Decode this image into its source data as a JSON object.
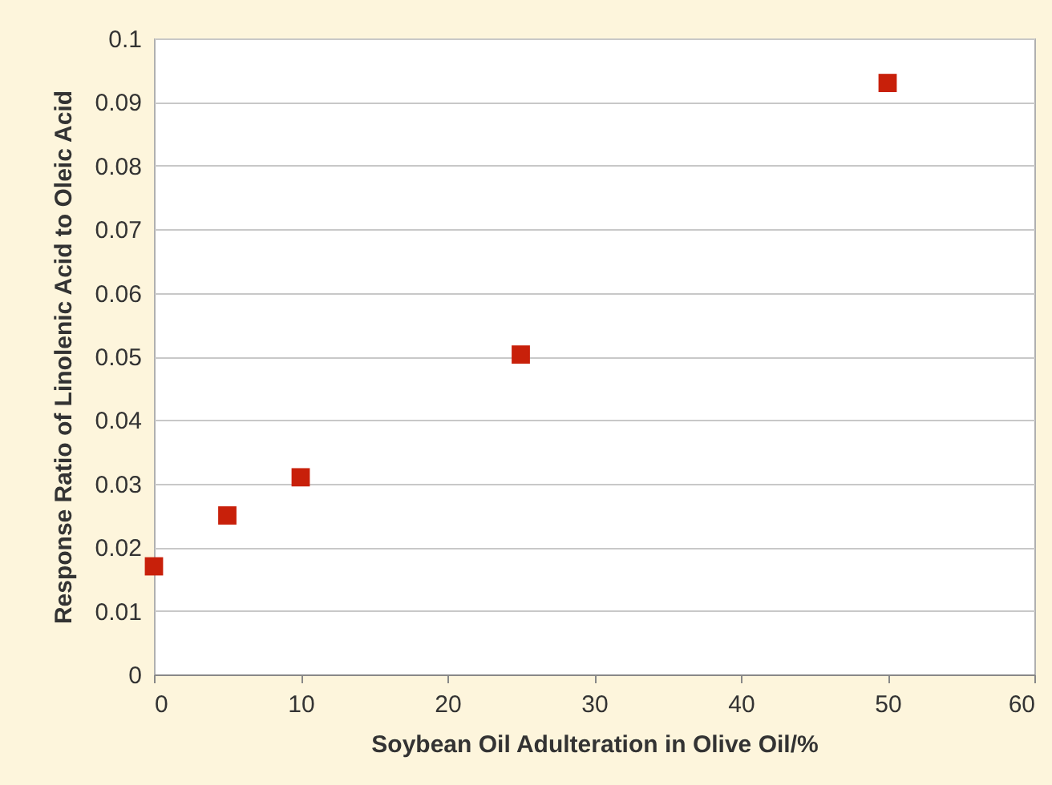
{
  "chart_data": {
    "type": "scatter",
    "xlabel": "Soybean Oil  Adulteration in Olive Oil/%",
    "ylabel": "Response Ratio of Linolenic Acid to Oleic Acid",
    "x": [
      0,
      5,
      10,
      25,
      50
    ],
    "series": [
      {
        "color": "#c8200a",
        "values": [
          0.017,
          0.025,
          0.031,
          0.0503,
          0.093
        ]
      }
    ],
    "xlim": [
      0,
      60
    ],
    "xticks": [
      0,
      10,
      20,
      30,
      40,
      50,
      60
    ],
    "ylim": [
      0,
      0.1
    ],
    "yticks": [
      0,
      0.01,
      0.02,
      0.03,
      0.04,
      0.05,
      0.06,
      0.07,
      0.08,
      0.09,
      0.1
    ],
    "grid": "y",
    "marker": "square"
  }
}
